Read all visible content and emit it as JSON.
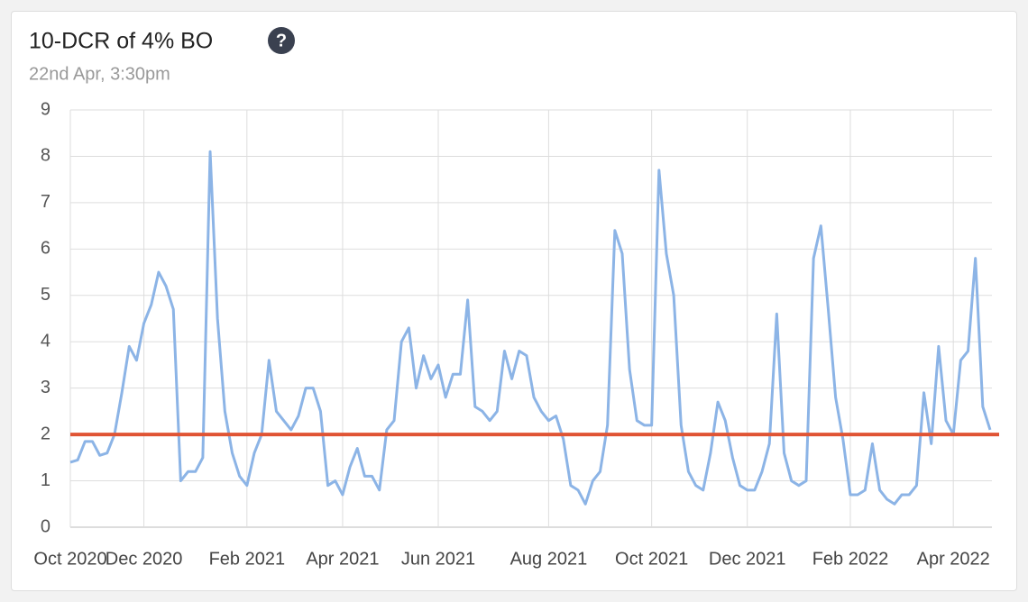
{
  "chart_data": {
    "type": "line",
    "title": "10-DCR of 4% BO",
    "subtitle": "22nd Apr, 3:30pm",
    "categories": [
      "Oct 2020",
      null,
      null,
      null,
      null,
      null,
      null,
      null,
      null,
      null,
      "Dec 2020",
      null,
      null,
      null,
      null,
      null,
      null,
      null,
      null,
      null,
      null,
      null,
      null,
      null,
      "Feb 2021",
      null,
      null,
      null,
      null,
      null,
      null,
      null,
      null,
      null,
      null,
      null,
      null,
      "Apr 2021",
      null,
      null,
      null,
      null,
      null,
      null,
      null,
      null,
      null,
      null,
      null,
      null,
      "Jun 2021",
      null,
      null,
      null,
      null,
      null,
      null,
      null,
      null,
      null,
      null,
      null,
      null,
      null,
      null,
      "Aug 2021",
      null,
      null,
      null,
      null,
      null,
      null,
      null,
      null,
      null,
      null,
      null,
      null,
      null,
      "Oct 2021",
      null,
      null,
      null,
      null,
      null,
      null,
      null,
      null,
      null,
      null,
      null,
      null,
      "Dec 2021",
      null,
      null,
      null,
      null,
      null,
      null,
      null,
      null,
      null,
      null,
      null,
      null,
      null,
      "Feb 2022",
      null,
      null,
      null,
      null,
      null,
      null,
      null,
      null,
      null,
      null,
      null,
      null,
      null,
      "Apr 2022",
      null,
      null,
      null,
      null,
      null
    ],
    "series": [
      {
        "name": "10-DCR",
        "color": "#8cb4e6",
        "values": [
          1.4,
          1.45,
          1.85,
          1.85,
          1.55,
          1.6,
          2.0,
          2.9,
          3.9,
          3.6,
          4.4,
          4.8,
          5.5,
          5.2,
          4.7,
          1.0,
          1.2,
          1.2,
          1.5,
          8.1,
          4.5,
          2.5,
          1.6,
          1.1,
          0.9,
          1.6,
          2.0,
          3.6,
          2.5,
          2.3,
          2.1,
          2.4,
          3.0,
          3.0,
          2.5,
          0.9,
          1.0,
          0.7,
          1.3,
          1.7,
          1.1,
          1.1,
          0.8,
          2.1,
          2.3,
          4.0,
          4.3,
          3.0,
          3.7,
          3.2,
          3.5,
          2.8,
          3.3,
          3.3,
          4.9,
          2.6,
          2.5,
          2.3,
          2.5,
          3.8,
          3.2,
          3.8,
          3.7,
          2.8,
          2.5,
          2.3,
          2.4,
          1.9,
          0.9,
          0.8,
          0.5,
          1.0,
          1.2,
          2.2,
          6.4,
          5.9,
          3.4,
          2.3,
          2.2,
          2.2,
          7.7,
          5.9,
          5.0,
          2.2,
          1.2,
          0.9,
          0.8,
          1.6,
          2.7,
          2.3,
          1.5,
          0.9,
          0.8,
          0.8,
          1.2,
          1.8,
          4.6,
          1.6,
          1.0,
          0.9,
          1.0,
          5.8,
          6.5,
          4.7,
          2.8,
          1.9,
          0.7,
          0.7,
          0.8,
          1.8,
          0.8,
          0.6,
          0.5,
          0.7,
          0.7,
          0.9,
          2.9,
          1.8,
          3.9,
          2.3,
          2.0,
          3.6,
          3.8,
          5.8,
          2.6,
          2.1
        ]
      }
    ],
    "reference_line": {
      "value": 2,
      "color": "#e05434"
    },
    "ylim": [
      0,
      9
    ],
    "yticks": [
      0,
      1,
      2,
      3,
      4,
      5,
      6,
      7,
      8,
      9
    ],
    "grid": true
  }
}
